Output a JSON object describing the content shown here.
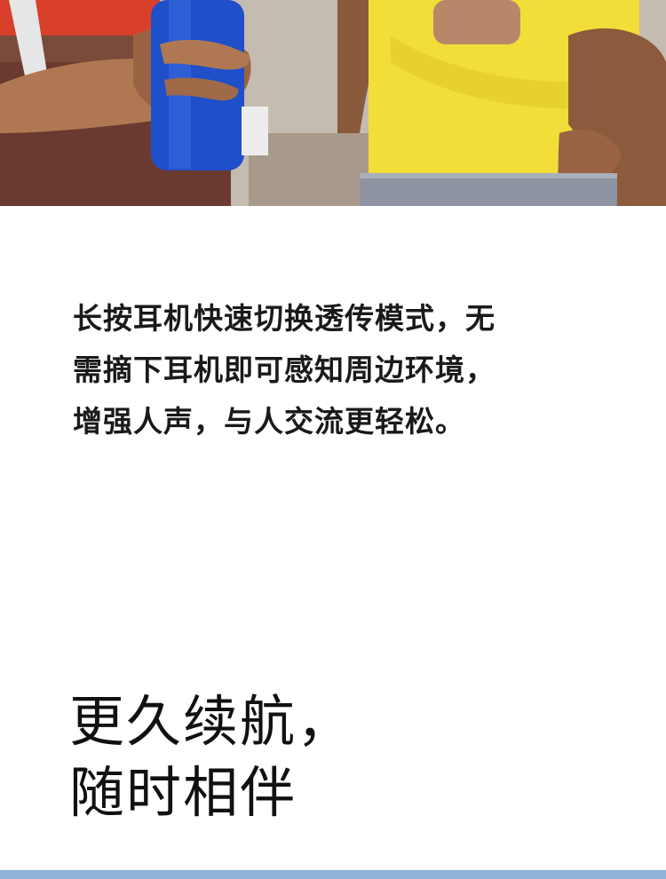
{
  "hero": {
    "image": "photo of two joggers holding water bottles",
    "colors": {
      "bottle": "#1f4fc9",
      "shirt": "#f1de38",
      "skin": "#b07852",
      "top_left": "#d8402c"
    }
  },
  "description": {
    "lines": [
      "长按耳机快速切换透传模式，无",
      "需摘下耳机即可感知周边环境，",
      "增强人声，与人交流更轻松。"
    ]
  },
  "headline": {
    "lines": [
      "更久续航，",
      "随时相伴"
    ]
  },
  "bottom_bar": {
    "color": "#8fb2d6"
  }
}
